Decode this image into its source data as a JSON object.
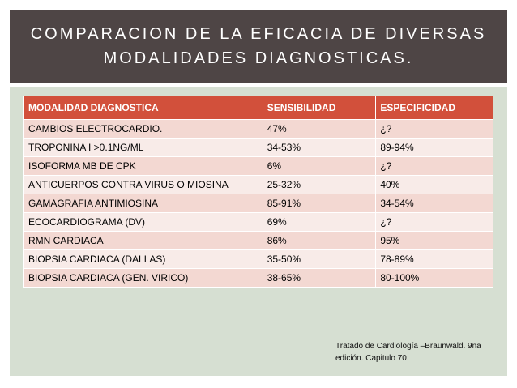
{
  "slide": {
    "title_line1": "COMPARACION DE LA EFICACIA DE DIVERSAS",
    "title_line2": "MODALIDADES DIAGNOSTICAS."
  },
  "table": {
    "headers": [
      "MODALIDAD DIAGNOSTICA",
      "SENSIBILIDAD",
      "ESPECIFICIDAD"
    ],
    "rows": [
      [
        "CAMBIOS ELECTROCARDIO.",
        "47%",
        "¿?"
      ],
      [
        "TROPONINA I >0.1NG/ML",
        "34-53%",
        "89-94%"
      ],
      [
        "ISOFORMA MB DE CPK",
        "6%",
        "¿?"
      ],
      [
        "ANTICUERPOS CONTRA VIRUS O MIOSINA",
        "25-32%",
        "40%"
      ],
      [
        "GAMAGRAFIA ANTIMIOSINA",
        "85-91%",
        "34-54%"
      ],
      [
        "ECOCARDIOGRAMA (DV)",
        "69%",
        "¿?"
      ],
      [
        "RMN CARDIACA",
        "86%",
        "95%"
      ],
      [
        "BIOPSIA CARDIACA (DALLAS)",
        "35-50%",
        "78-89%"
      ],
      [
        "BIOPSIA CARDIACA (GEN. VIRICO)",
        "38-65%",
        "80-100%"
      ]
    ]
  },
  "citation": "Tratado de Cardiología –Braunwald. 9na edición. Capitulo 70.",
  "colors": {
    "header_bg": "#4e4545",
    "panel_bg": "#d6dfd2",
    "table_header_bg": "#d2503b",
    "row_odd_bg": "#f3d8d2",
    "row_even_bg": "#f8ebe8"
  }
}
